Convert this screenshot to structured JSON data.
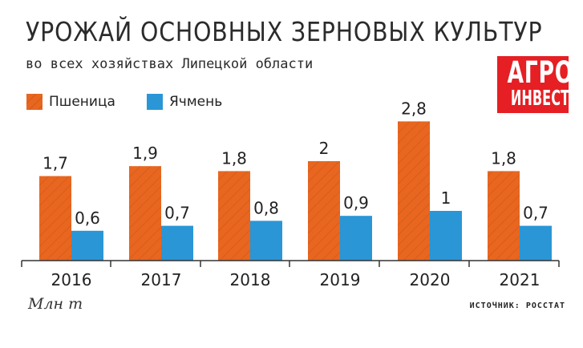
{
  "header": {
    "title": "УРОЖАЙ ОСНОВНЫХ ЗЕРНОВЫХ КУЛЬТУР",
    "subtitle": "во всех хозяйствах Липецкой области"
  },
  "logo": {
    "line1": "АГРО",
    "line2": "ИНВЕСТОР"
  },
  "legend": {
    "wheat": "Пшеница",
    "barley": "Ячмень"
  },
  "footer": {
    "unit": "Млн т",
    "source": "ИСТОЧНИК: РОССТАТ"
  },
  "colors": {
    "wheat": "#e8661f",
    "barley": "#2a96d6",
    "axis": "#333333"
  },
  "chart_data": {
    "type": "bar",
    "categories": [
      "2016",
      "2017",
      "2018",
      "2019",
      "2020",
      "2021"
    ],
    "series": [
      {
        "name": "Пшеница",
        "values": [
          1.7,
          1.9,
          1.8,
          2,
          2.8,
          1.8
        ],
        "labels": [
          "1,7",
          "1,9",
          "1,8",
          "2",
          "2,8",
          "1,8"
        ]
      },
      {
        "name": "Ячмень",
        "values": [
          0.6,
          0.7,
          0.8,
          0.9,
          1,
          0.7
        ],
        "labels": [
          "0,6",
          "0,7",
          "0,8",
          "0,9",
          "1",
          "0,7"
        ]
      }
    ],
    "title": "УРОЖАЙ ОСНОВНЫХ ЗЕРНОВЫХ КУЛЬТУР",
    "ylabel": "Млн т",
    "ylim": [
      0,
      2.8
    ],
    "legend": "top-left",
    "grid": false
  }
}
